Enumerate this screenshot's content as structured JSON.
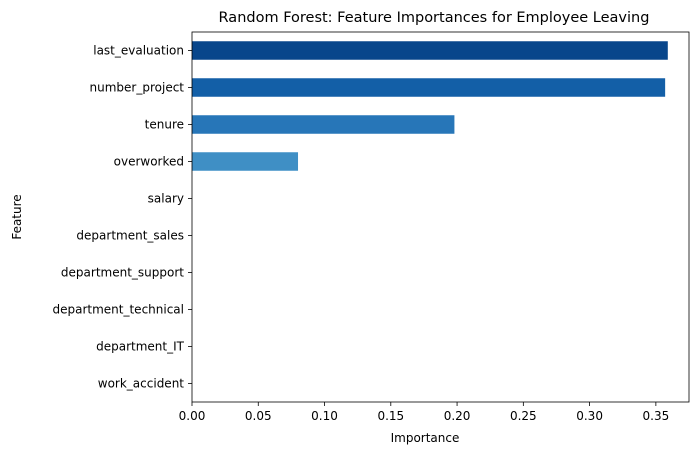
{
  "chart_data": {
    "type": "bar",
    "orientation": "horizontal",
    "title": "Random Forest: Feature Importances for Employee Leaving",
    "xlabel": "Importance",
    "ylabel": "Feature",
    "categories": [
      "last_evaluation",
      "number_project",
      "tenure",
      "overworked",
      "salary",
      "department_sales",
      "department_support",
      "department_technical",
      "department_IT",
      "work_accident"
    ],
    "values": [
      0.359,
      0.357,
      0.198,
      0.08,
      0.0,
      0.0,
      0.0,
      0.0,
      0.0,
      0.0
    ],
    "bar_colors": [
      "#08468b",
      "#135fa7",
      "#2776b8",
      "#3f8fc5",
      "#6aaed6",
      "#6aaed6",
      "#6aaed6",
      "#6aaed6",
      "#6aaed6",
      "#6aaed6"
    ],
    "xlim": [
      0,
      0.375
    ],
    "xticks": [
      "0.00",
      "0.05",
      "0.10",
      "0.15",
      "0.20",
      "0.25",
      "0.30",
      "0.35"
    ],
    "grid": false,
    "legend": "none"
  }
}
